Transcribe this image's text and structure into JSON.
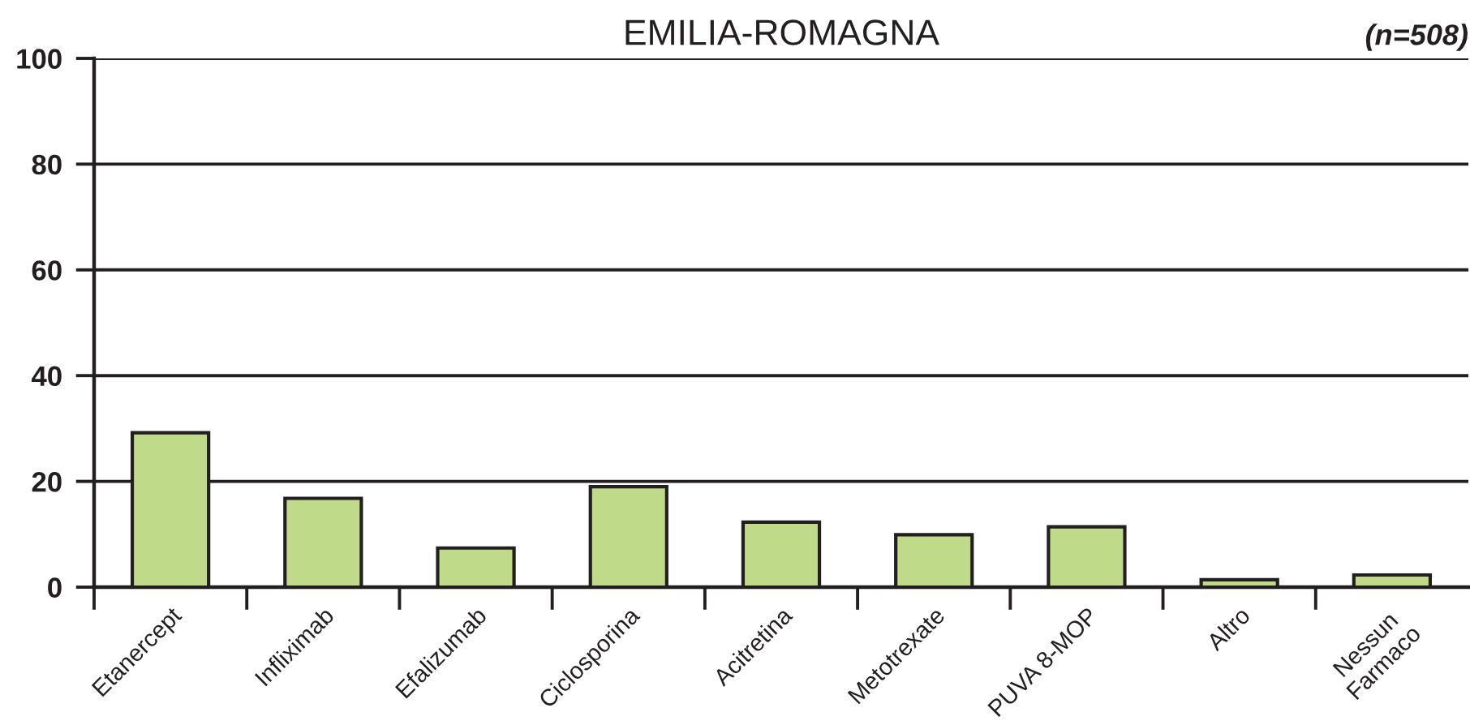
{
  "chart_data": {
    "type": "bar",
    "title": "EMILIA-ROMAGNA",
    "subtitle": "(n=508)",
    "categories": [
      "Etanercept",
      "Infliximab",
      "Efalizumab",
      "Ciclosporina",
      "Acitretina",
      "Metotrexate",
      "PUVA 8-MOP",
      "Altro",
      "Nessun Farmaco"
    ],
    "values": [
      29.2,
      16.8,
      7.4,
      19.0,
      12.3,
      9.9,
      11.4,
      1.4,
      2.3
    ],
    "color": "#bfdb8a",
    "ylim": [
      0,
      100
    ],
    "yticks": [
      0,
      20,
      40,
      60,
      80,
      100
    ],
    "grid": "y",
    "legend": false
  }
}
